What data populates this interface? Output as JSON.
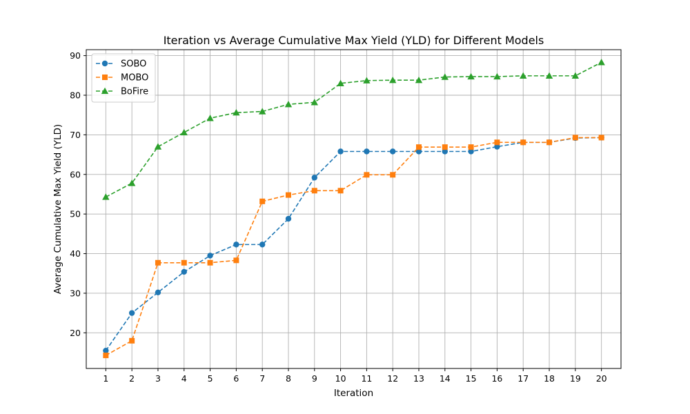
{
  "chart_data": {
    "type": "line",
    "title": "Iteration vs Average Cumulative Max Yield (YLD) for Different Models",
    "xlabel": "Iteration",
    "ylabel": "Average Cumulative Max Yield (YLD)",
    "x": [
      1,
      2,
      3,
      4,
      5,
      6,
      7,
      8,
      9,
      10,
      11,
      12,
      13,
      14,
      15,
      16,
      17,
      18,
      19,
      20
    ],
    "xlim": [
      0.25,
      20.75
    ],
    "ylim": [
      11,
      91.5
    ],
    "yticks": [
      20,
      30,
      40,
      50,
      60,
      70,
      80,
      90
    ],
    "grid": true,
    "legend_position": "top-left",
    "series": [
      {
        "name": "SOBO",
        "color": "#1f77b4",
        "marker": "circle",
        "values": [
          15.5,
          25.0,
          30.2,
          35.4,
          39.5,
          42.3,
          42.3,
          48.8,
          59.2,
          65.8,
          65.8,
          65.8,
          65.8,
          65.8,
          65.8,
          67.0,
          68.1,
          68.1,
          69.2,
          69.3
        ]
      },
      {
        "name": "MOBO",
        "color": "#ff7f0e",
        "marker": "square",
        "values": [
          14.3,
          18.0,
          37.7,
          37.7,
          37.7,
          38.3,
          53.2,
          54.8,
          55.9,
          55.9,
          59.9,
          59.9,
          66.9,
          66.9,
          66.9,
          68.1,
          68.1,
          68.1,
          69.3,
          69.3
        ]
      },
      {
        "name": "BoFire",
        "color": "#2ca02c",
        "marker": "triangle",
        "values": [
          54.3,
          57.8,
          67.0,
          70.6,
          74.2,
          75.6,
          75.9,
          77.7,
          78.2,
          83.0,
          83.7,
          83.8,
          83.8,
          84.6,
          84.7,
          84.7,
          84.9,
          84.9,
          84.9,
          88.3
        ]
      }
    ]
  }
}
